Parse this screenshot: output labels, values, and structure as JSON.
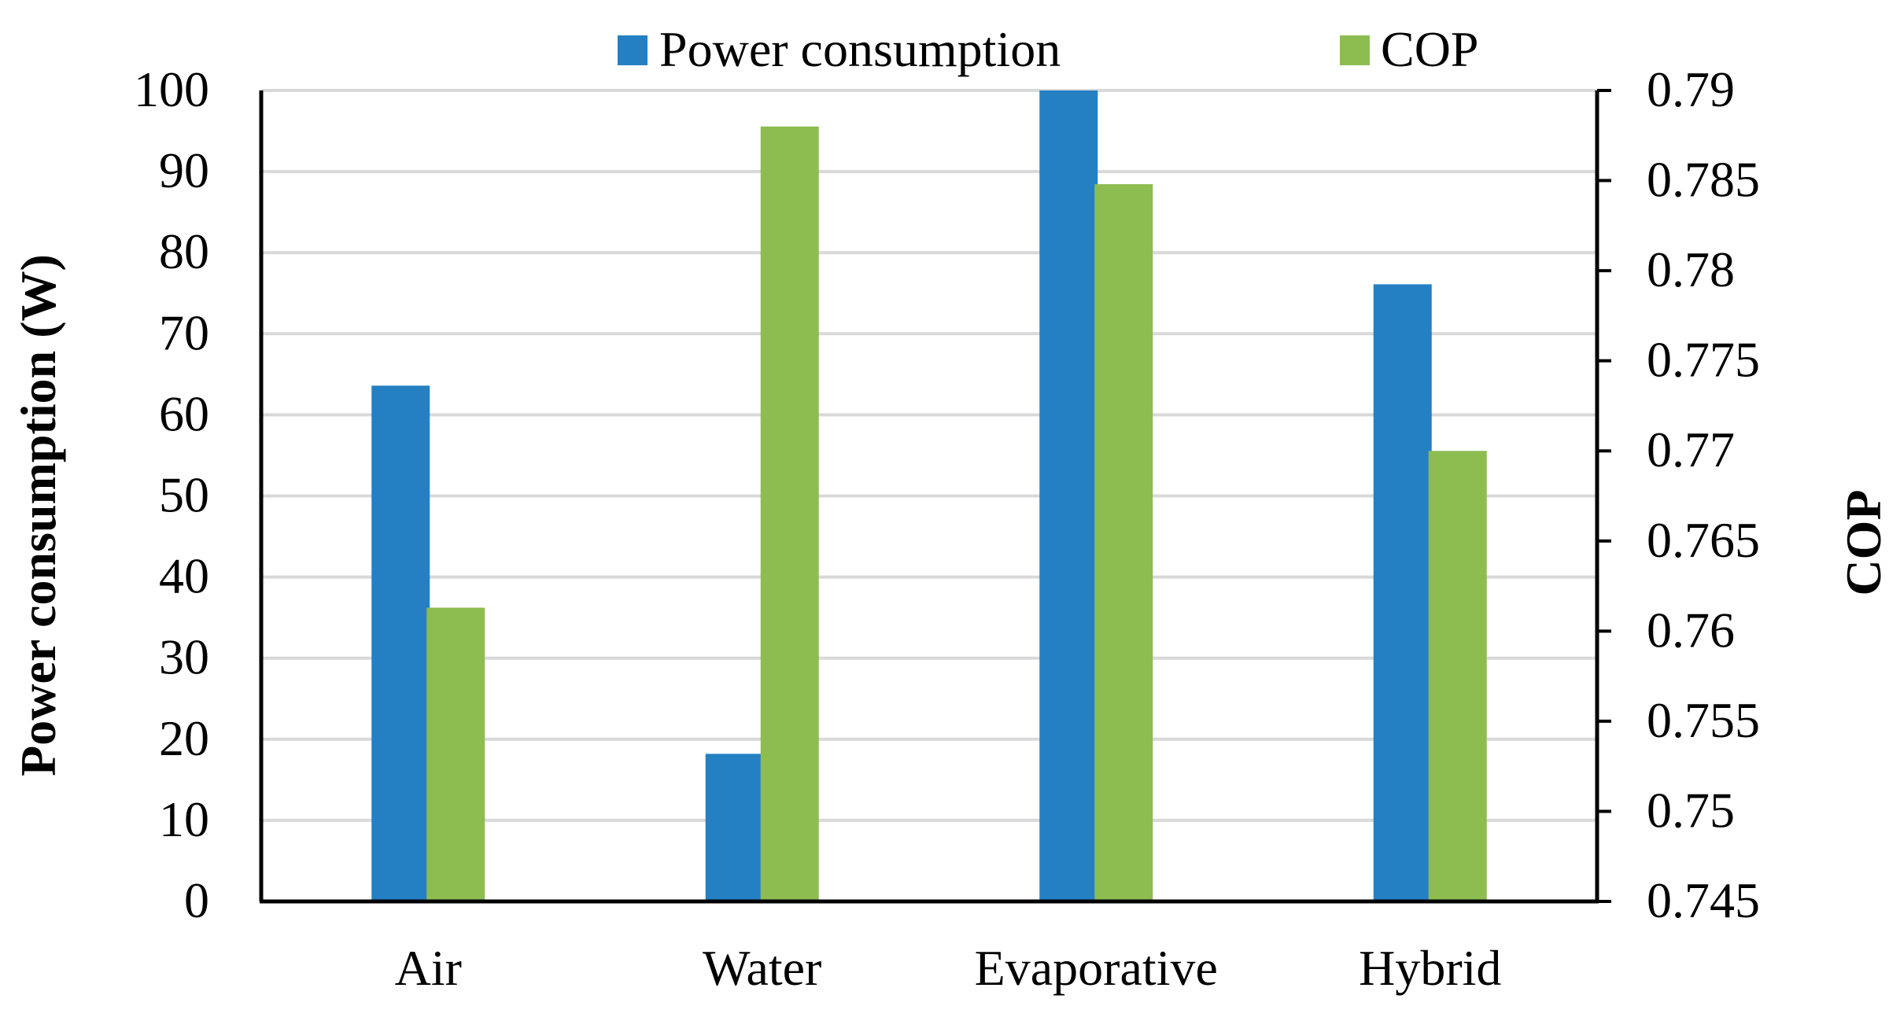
{
  "chart_data": {
    "type": "bar",
    "title": "",
    "categories": [
      "Air",
      "Water",
      "Evaporative",
      "Hybrid"
    ],
    "series": [
      {
        "name": "Power consumption",
        "axis": "left",
        "color": "#2580C3",
        "values": [
          63.6,
          18.2,
          100,
          76.1
        ]
      },
      {
        "name": "COP",
        "axis": "right",
        "color": "#8DBC51",
        "values": [
          0.7613,
          0.788,
          0.7848,
          0.77
        ]
      }
    ],
    "xlabel": "",
    "ylabel_left": "Power consumption (W)",
    "ylabel_right": "COP",
    "ylim_left": [
      0,
      100
    ],
    "ylim_right": [
      0.745,
      0.79
    ],
    "yticks_left": [
      "0",
      "10",
      "20",
      "30",
      "40",
      "50",
      "60",
      "70",
      "80",
      "90",
      "100"
    ],
    "yticks_right": [
      "0.745",
      "0.75",
      "0.755",
      "0.76",
      "0.765",
      "0.77",
      "0.775",
      "0.78",
      "0.785",
      "0.79"
    ],
    "grid": true,
    "legend_position": "top-center"
  }
}
